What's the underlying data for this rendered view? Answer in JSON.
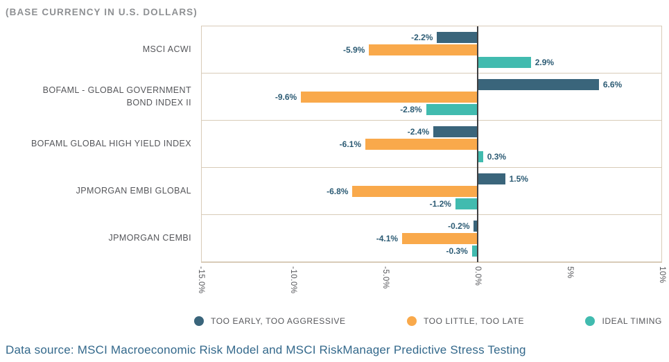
{
  "data_source_note": "Data source: MSCI Macroeconomic Risk Model and MSCI RiskManager Predictive Stress Testing",
  "colors": {
    "too_early": "#3A657B",
    "too_little": "#F9A94B",
    "ideal": "#41BBAF",
    "grid": "#D8CBB8",
    "zero_line": "#404042",
    "value_label": "#2C5B74",
    "category_label": "#55565A",
    "title_color": "#8E9093",
    "footer_color": "#33688B"
  },
  "chart_data": {
    "type": "bar",
    "orientation": "horizontal",
    "title": "(BASE CURRENCY IN U.S. DOLLARS)",
    "xlabel": "",
    "ylabel": "",
    "xlim": [
      -15,
      10
    ],
    "grid": "zero-line-only",
    "legend_position": "bottom",
    "categories": [
      "MSCI ACWI",
      "BOFAML - GLOBAL GOVERNMENT BOND INDEX II",
      "BOFAML GLOBAL HIGH YIELD INDEX",
      "JPMORGAN EMBI GLOBAL",
      "JPMORGAN CEMBI"
    ],
    "series": [
      {
        "name": "TOO EARLY, TOO AGGRESSIVE",
        "color_key": "too_early",
        "values": [
          -2.2,
          6.6,
          -2.4,
          1.5,
          -0.2
        ],
        "labels": [
          "-2.2%",
          "6.6%",
          "-2.4%",
          "1.5%",
          "-0.2%"
        ]
      },
      {
        "name": "TOO LITTLE, TOO LATE",
        "color_key": "too_little",
        "values": [
          -5.9,
          -9.6,
          -6.1,
          -6.8,
          -4.1
        ],
        "labels": [
          "-5.9%",
          "-9.6%",
          "-6.1%",
          "-6.8%",
          "-4.1%"
        ]
      },
      {
        "name": "IDEAL TIMING",
        "color_key": "ideal",
        "values": [
          2.9,
          -2.8,
          0.3,
          -1.2,
          -0.3
        ],
        "labels": [
          "2.9%",
          "-2.8%",
          "0.3%",
          "-1.2%",
          "-0.3%"
        ]
      }
    ],
    "ticks": [
      {
        "label": "-15.0%",
        "value": -15
      },
      {
        "label": "-10.0%",
        "value": -10
      },
      {
        "label": "-5.0%",
        "value": -5
      },
      {
        "label": "0.0%",
        "value": 0
      },
      {
        "label": "5%",
        "value": 5
      },
      {
        "label": "10%",
        "value": 10
      }
    ]
  }
}
